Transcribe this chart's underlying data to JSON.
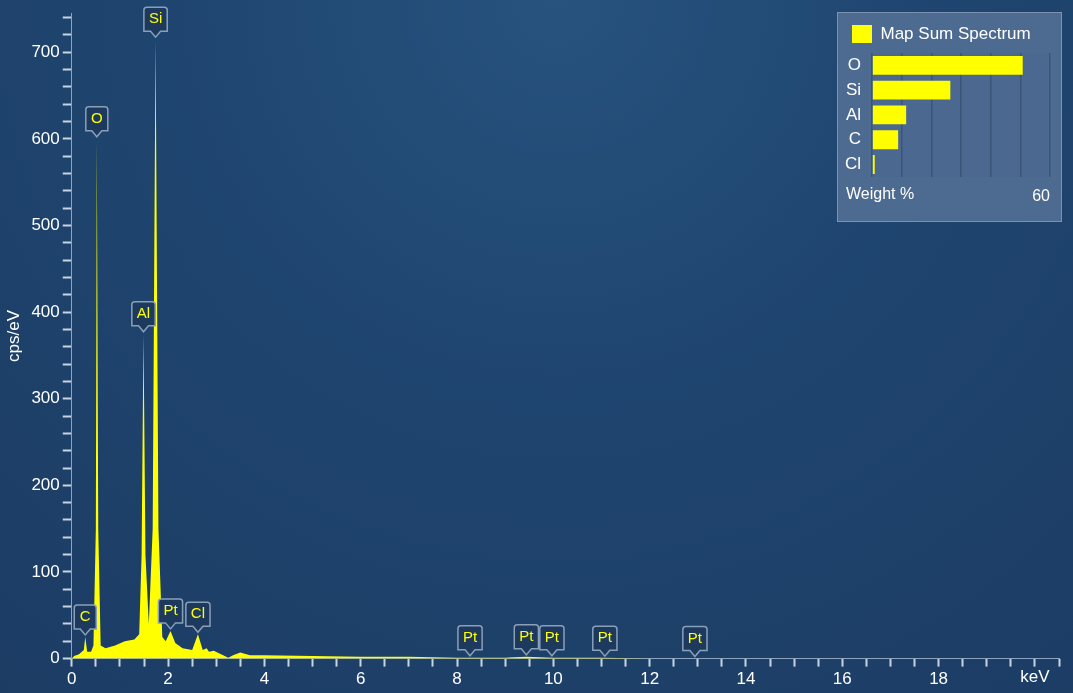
{
  "chart_data": [
    {
      "type": "area",
      "xlabel": "keV",
      "ylabel": "cps/eV",
      "color": "#ffff00",
      "grid": false,
      "legend": false,
      "x": [
        0,
        0.05,
        0.15,
        0.25,
        0.28,
        0.32,
        0.4,
        0.45,
        0.5,
        0.52,
        0.55,
        0.6,
        0.7,
        0.9,
        1.1,
        1.3,
        1.4,
        1.45,
        1.49,
        1.53,
        1.6,
        1.68,
        1.74,
        1.8,
        1.88,
        1.95,
        2.05,
        2.15,
        2.3,
        2.5,
        2.62,
        2.72,
        2.8,
        2.85,
        2.95,
        3.1,
        3.25,
        3.35,
        3.5,
        3.7,
        4,
        5,
        6,
        7,
        8,
        9,
        9.44,
        10,
        11,
        12,
        13
      ],
      "values": [
        0,
        3,
        5,
        10,
        25,
        8,
        8,
        15,
        150,
        600,
        150,
        15,
        12,
        15,
        20,
        22,
        28,
        120,
        375,
        120,
        40,
        150,
        715,
        150,
        25,
        20,
        32,
        18,
        12,
        10,
        28,
        10,
        12,
        8,
        9,
        5,
        1,
        4,
        7,
        4,
        4,
        3,
        2,
        2,
        1,
        1,
        2,
        1,
        1,
        0,
        0
      ],
      "xlim": [
        0,
        20.5
      ],
      "xticks": [
        0,
        {
          "value": 0.5,
          "label": null
        },
        {
          "value": 1,
          "label": null
        },
        {
          "value": 1.5,
          "label": null
        },
        2,
        {
          "value": 2.5,
          "label": null
        },
        {
          "value": 3,
          "label": null
        },
        {
          "value": 3.5,
          "label": null
        },
        4,
        {
          "value": 4.5,
          "label": null
        },
        {
          "value": 5,
          "label": null
        },
        {
          "value": 5.5,
          "label": null
        },
        6,
        {
          "value": 6.5,
          "label": null
        },
        {
          "value": 7,
          "label": null
        },
        {
          "value": 7.5,
          "label": null
        },
        8,
        {
          "value": 8.5,
          "label": null
        },
        {
          "value": 9,
          "label": null
        },
        {
          "value": 9.5,
          "label": null
        },
        10,
        {
          "value": 10.5,
          "label": null
        },
        {
          "value": 11,
          "label": null
        },
        {
          "value": 11.5,
          "label": null
        },
        12,
        {
          "value": 12.5,
          "label": null
        },
        {
          "value": 13,
          "label": null
        },
        {
          "value": 13.5,
          "label": null
        },
        14,
        {
          "value": 14.5,
          "label": null
        },
        {
          "value": 15,
          "label": null
        },
        {
          "value": 15.5,
          "label": null
        },
        16,
        {
          "value": 16.5,
          "label": null
        },
        {
          "value": 17,
          "label": null
        },
        {
          "value": 17.5,
          "label": null
        },
        18,
        {
          "value": 18.5,
          "label": null
        },
        {
          "value": 19,
          "label": null
        },
        {
          "value": 19.5,
          "label": null
        },
        {
          "value": 20,
          "label": null
        },
        {
          "value": 20.5,
          "label": null
        }
      ],
      "ylim": [
        0,
        745
      ],
      "yticks": [
        0,
        {
          "value": 20,
          "label": null
        },
        {
          "value": 40,
          "label": null
        },
        {
          "value": 60,
          "label": null
        },
        {
          "value": 80,
          "label": null
        },
        100,
        {
          "value": 120,
          "label": null
        },
        {
          "value": 140,
          "label": null
        },
        {
          "value": 160,
          "label": null
        },
        {
          "value": 180,
          "label": null
        },
        200,
        {
          "value": 220,
          "label": null
        },
        {
          "value": 240,
          "label": null
        },
        {
          "value": 260,
          "label": null
        },
        {
          "value": 280,
          "label": null
        },
        300,
        {
          "value": 320,
          "label": null
        },
        {
          "value": 340,
          "label": null
        },
        {
          "value": 360,
          "label": null
        },
        {
          "value": 380,
          "label": null
        },
        400,
        {
          "value": 420,
          "label": null
        },
        {
          "value": 440,
          "label": null
        },
        {
          "value": 460,
          "label": null
        },
        {
          "value": 480,
          "label": null
        },
        500,
        {
          "value": 520,
          "label": null
        },
        {
          "value": 540,
          "label": null
        },
        {
          "value": 560,
          "label": null
        },
        {
          "value": 580,
          "label": null
        },
        600,
        {
          "value": 620,
          "label": null
        },
        {
          "value": 640,
          "label": null
        },
        {
          "value": 660,
          "label": null
        },
        {
          "value": 680,
          "label": null
        },
        700,
        {
          "value": 720,
          "label": null
        },
        {
          "value": 740,
          "label": null
        }
      ],
      "annotations": [
        {
          "text": "C",
          "x": 0.28,
          "y": 25
        },
        {
          "text": "O",
          "x": 0.52,
          "y": 600
        },
        {
          "text": "Al",
          "x": 1.49,
          "y": 375
        },
        {
          "text": "Si",
          "x": 1.74,
          "y": 715
        },
        {
          "text": "Pt",
          "x": 2.05,
          "y": 32
        },
        {
          "text": "Cl",
          "x": 2.62,
          "y": 28
        },
        {
          "text": "Pt",
          "x": 8.27,
          "y": 1
        },
        {
          "text": "Pt",
          "x": 9.44,
          "y": 2
        },
        {
          "text": "Pt",
          "x": 9.97,
          "y": 1
        },
        {
          "text": "Pt",
          "x": 11.07,
          "y": 0.5
        },
        {
          "text": "Pt",
          "x": 12.94,
          "y": 0
        }
      ]
    },
    {
      "type": "bar",
      "orientation": "horizontal",
      "xlabel": "Weight %",
      "legend": "top",
      "grid": "x",
      "categories": [
        "O",
        "Si",
        "Al",
        "C",
        "Cl"
      ],
      "series": [
        {
          "name": "Map Sum Spectrum",
          "color": "#ffff00",
          "values": [
            50.8,
            26.4,
            11.5,
            8.8,
            0.9
          ]
        }
      ],
      "xlim": [
        0,
        60
      ],
      "xticks": [
        {
          "value": 0,
          "label": null
        },
        {
          "value": 10,
          "label": null
        },
        {
          "value": 20,
          "label": null
        },
        {
          "value": 30,
          "label": null
        },
        {
          "value": 40,
          "label": null
        },
        {
          "value": 50,
          "label": null
        },
        60
      ]
    }
  ]
}
